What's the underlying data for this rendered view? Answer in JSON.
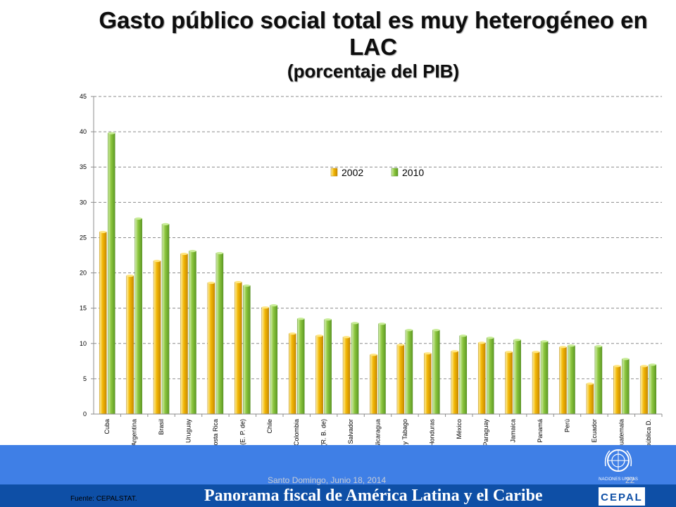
{
  "title": {
    "line1": "Gasto público social total es muy heterogéneo en",
    "line2": "LAC",
    "subtitle": "(porcentaje del PIB)"
  },
  "chart_data": {
    "type": "bar",
    "title": "Gasto público social total es muy heterogéneo en LAC",
    "subtitle": "(porcentaje del PIB)",
    "xlabel": "",
    "ylabel": "",
    "ylim": [
      0,
      45
    ],
    "yticks": [
      0,
      5,
      10,
      15,
      20,
      25,
      30,
      35,
      40,
      45
    ],
    "grid": true,
    "legend_position": "upper-center",
    "categories": [
      "Cuba",
      "Argentina",
      "Brasil",
      "Uruguay",
      "Costa Rica",
      "Bolivia (E. P. de)",
      "Chile",
      "Colombia",
      "Venezuela (R. B. de)",
      "El Salvador",
      "Nicaragua",
      "Trinidad y Tabago",
      "Honduras",
      "México",
      "Paraguay",
      "Jamaica",
      "Panamá",
      "Perú",
      "Ecuador",
      "Guatemala",
      "República D."
    ],
    "series": [
      {
        "name": "2002",
        "color": "#f2b705",
        "values": [
          25.8,
          19.6,
          21.7,
          22.7,
          18.6,
          18.7,
          15.1,
          11.4,
          11.1,
          10.9,
          8.4,
          9.8,
          8.6,
          8.9,
          10.1,
          8.8,
          8.8,
          9.5,
          4.3,
          6.8,
          6.8
        ]
      },
      {
        "name": "2010",
        "color": "#8cc63e",
        "values": [
          39.8,
          27.7,
          26.9,
          23.1,
          22.8,
          18.2,
          15.4,
          13.5,
          13.4,
          12.9,
          12.8,
          11.9,
          11.9,
          11.1,
          10.8,
          10.5,
          10.3,
          9.7,
          9.6,
          7.8,
          7.0
        ]
      }
    ]
  },
  "footer": {
    "source": "Fuente: CEPALSTAT.",
    "date": "Santo Domingo, Junio 18, 2014",
    "page": "22",
    "title": "Panorama fiscal de América Latina y el Caribe",
    "cepal_logo_text": "CEPAL",
    "un_emblem_text": "NACIONES UNIDAS"
  }
}
